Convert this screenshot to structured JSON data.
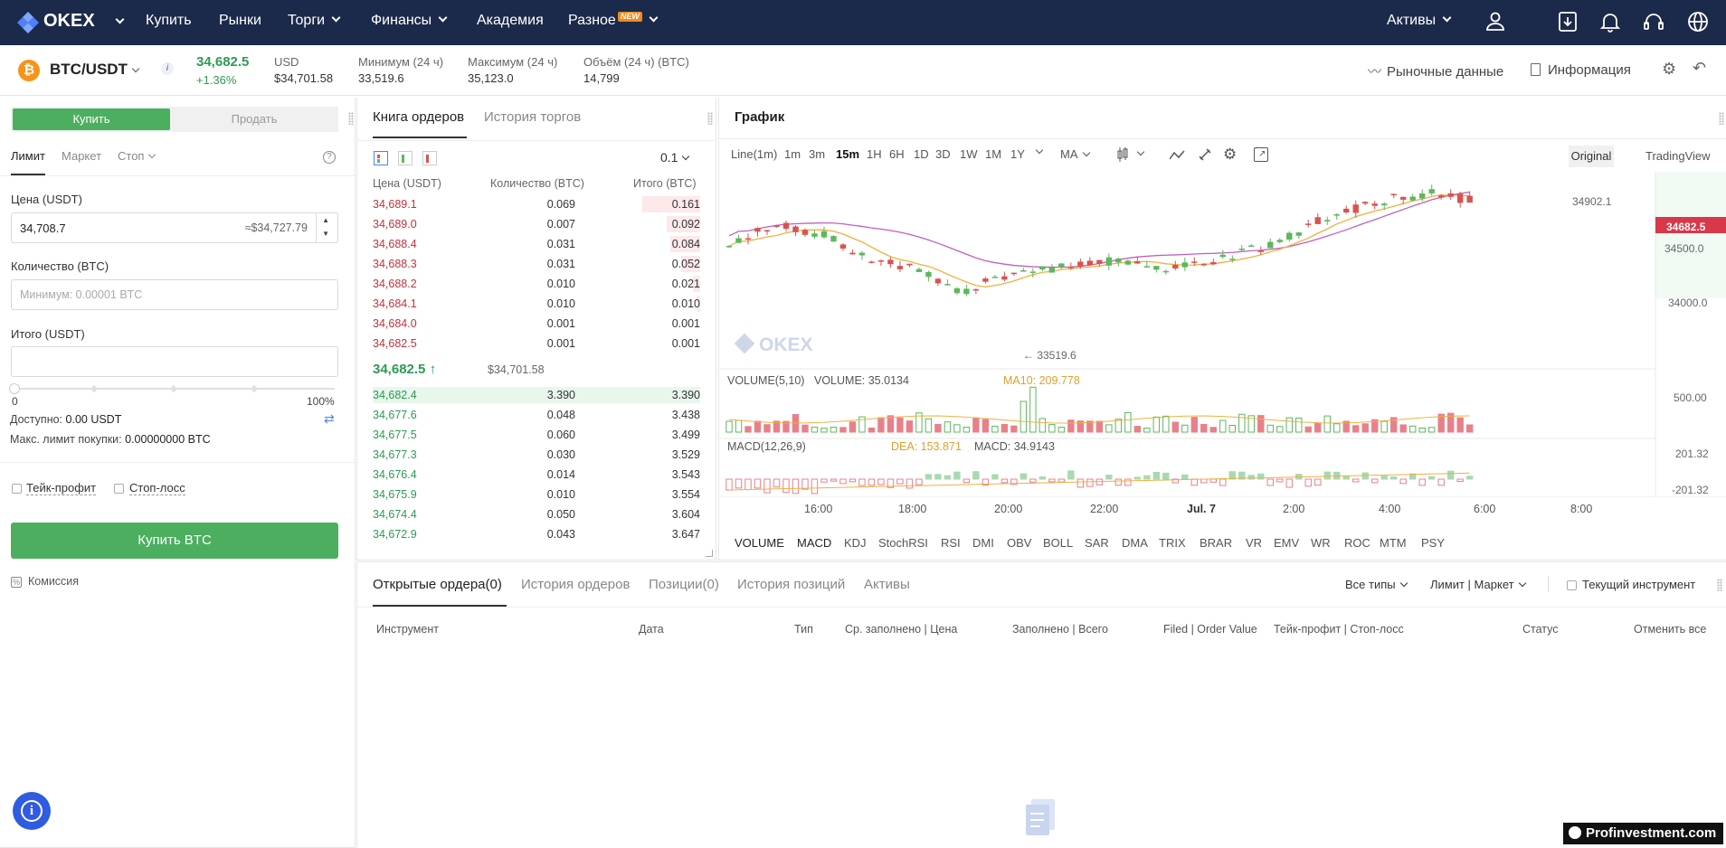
{
  "nav": {
    "brand": "OKEX",
    "items": [
      {
        "label": "Купить"
      },
      {
        "label": "Рынки"
      },
      {
        "label": "Торги"
      },
      {
        "label": "Финансы"
      },
      {
        "label": "Академия"
      },
      {
        "label": "Разное",
        "badge": "NEW"
      }
    ],
    "assets": "Активы",
    "icons": [
      "user-icon",
      "download-icon",
      "bell-icon",
      "headset-icon",
      "globe-icon"
    ]
  },
  "ticker": {
    "pair": "BTC/USDT",
    "last_price": "34,682.5",
    "change": "+1.36%",
    "usd_label": "USD",
    "usd_value": "$34,701.58",
    "low_label": "Минимум (24 ч)",
    "low_value": "33,519.6",
    "high_label": "Максимум (24 ч)",
    "high_value": "35,123.0",
    "volume_label": "Объём (24 ч) (BTC)",
    "volume_value": "14,799",
    "market_data": "Рыночные данные",
    "info": "Информация"
  },
  "trade_form": {
    "buy_tab": "Купить",
    "sell_tab": "Продать",
    "order_types": [
      "Лимит",
      "Маркет",
      "Стоп"
    ],
    "price_label": "Цена (USDT)",
    "price_value": "34,708.7",
    "price_approx": "≈$34,727.79",
    "qty_label": "Количество (BTC)",
    "qty_placeholder": "Минимум: 0.00001 BTC",
    "total_label": "Итого (USDT)",
    "slider_min": "0",
    "slider_max": "100%",
    "available_label": "Доступно:",
    "available_value": "0.00 USDT",
    "max_buy_label": "Макс. лимит покупки:",
    "max_buy_value": "0.00000000 BTC",
    "take_profit": "Тейк-профит",
    "stop_loss": "Стоп-лосс",
    "submit": "Купить BTC",
    "commission": "Комиссия"
  },
  "orderbook": {
    "tabs": [
      "Книга ордеров",
      "История торгов"
    ],
    "precision": "0.1",
    "headers": [
      "Цена (USDT)",
      "Количество (BTC)",
      "Итого (BTC)"
    ],
    "asks": [
      {
        "price": "34,689.1",
        "qty": "0.069",
        "total": "0.161"
      },
      {
        "price": "34,689.0",
        "qty": "0.007",
        "total": "0.092"
      },
      {
        "price": "34,688.4",
        "qty": "0.031",
        "total": "0.084"
      },
      {
        "price": "34,688.3",
        "qty": "0.031",
        "total": "0.052"
      },
      {
        "price": "34,688.2",
        "qty": "0.010",
        "total": "0.021"
      },
      {
        "price": "34,684.1",
        "qty": "0.010",
        "total": "0.010"
      },
      {
        "price": "34,684.0",
        "qty": "0.001",
        "total": "0.001"
      },
      {
        "price": "34,682.5",
        "qty": "0.001",
        "total": "0.001"
      }
    ],
    "mid_price": "34,682.5",
    "mid_arrow": "↑",
    "mid_usd": "$34,701.58",
    "bids": [
      {
        "price": "34,682.4",
        "qty": "3.390",
        "total": "3.390"
      },
      {
        "price": "34,677.6",
        "qty": "0.048",
        "total": "3.438"
      },
      {
        "price": "34,677.5",
        "qty": "0.060",
        "total": "3.499"
      },
      {
        "price": "34,677.3",
        "qty": "0.030",
        "total": "3.529"
      },
      {
        "price": "34,676.4",
        "qty": "0.014",
        "total": "3.543"
      },
      {
        "price": "34,675.9",
        "qty": "0.010",
        "total": "3.554"
      },
      {
        "price": "34,674.4",
        "qty": "0.050",
        "total": "3.604"
      },
      {
        "price": "34,672.9",
        "qty": "0.043",
        "total": "3.647"
      }
    ]
  },
  "chart": {
    "title": "График",
    "intervals": [
      "Line(1m)",
      "1m",
      "3m",
      "15m",
      "1H",
      "6H",
      "1D",
      "3D",
      "1W",
      "1M",
      "1Y"
    ],
    "active_interval": "15m",
    "ma_label": "MA",
    "view_original": "Original",
    "view_tradingview": "TradingView",
    "price_axis": [
      "34500.0",
      "34000.0"
    ],
    "last_price_tag": "34682.5",
    "high_marker": "34902.1",
    "low_marker": "← 33519.6",
    "watermark": "OKEX",
    "volume_legend": "VOLUME(5,10)",
    "volume_value": "VOLUME: 35.0134",
    "volume_ma10": "MA10: 209.778",
    "volume_axis": "500.00",
    "macd_legend": "MACD(12,26,9)",
    "macd_dea": "DEA: 153.871",
    "macd_value": "MACD: 34.9143",
    "macd_axis_top": "201.32",
    "macd_axis_bottom": "-201.32",
    "time_axis": [
      "16:00",
      "18:00",
      "20:00",
      "22:00",
      "Jul. 7",
      "2:00",
      "4:00",
      "6:00",
      "8:00"
    ],
    "indicators": [
      "VOLUME",
      "MACD",
      "KDJ",
      "StochRSI",
      "RSI",
      "DMI",
      "OBV",
      "BOLL",
      "SAR",
      "DMA",
      "TRIX",
      "BRAR",
      "VR",
      "EMV",
      "WR",
      "ROC",
      "MTM",
      "PSY"
    ],
    "colors": {
      "up": "#5cb85c",
      "down": "#d9534f",
      "ma_fast": "#f0b040",
      "ma_slow": "#c060c0"
    }
  },
  "orders": {
    "tabs": [
      "Открытые ордера(0)",
      "История ордеров",
      "Позиции(0)",
      "История позиций",
      "Активы"
    ],
    "filter_type": "Все типы",
    "filter_kind": "Лимит | Маркет",
    "current_instrument": "Текущий инструмент",
    "columns": [
      "Инструмент",
      "Дата",
      "Тип",
      "Ср. заполнено | Цена",
      "Заполнено | Всего",
      "Filed | Order Value",
      "Тейк-профит | Стоп-лосс",
      "Статус",
      "Отменить все"
    ]
  },
  "watermark_site": "Profinvestment.com"
}
